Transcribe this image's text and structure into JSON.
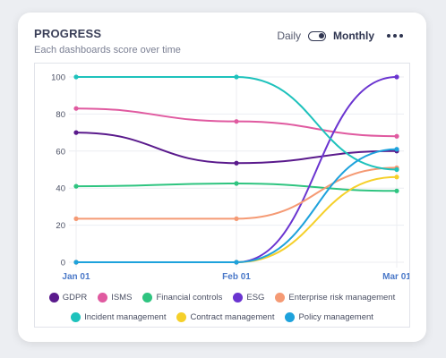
{
  "header": {
    "title": "PROGRESS",
    "subtitle": "Each dashboards score over time"
  },
  "toolbar": {
    "daily_label": "Daily",
    "monthly_label": "Monthly",
    "toggle_state": "monthly",
    "more_icon": "more-horizontal-icon"
  },
  "chart_data": {
    "type": "line",
    "categories": [
      "Jan 01",
      "Feb 01",
      "Mar 01"
    ],
    "ylim": [
      0,
      100
    ],
    "yticks": [
      0,
      20,
      40,
      60,
      80,
      100
    ],
    "grid": true,
    "legend_position": "bottom",
    "series": [
      {
        "name": "GDPR",
        "color": "#5a1a8c",
        "values": [
          70,
          53.5,
          60
        ]
      },
      {
        "name": "ISMS",
        "color": "#e05aa0",
        "values": [
          83,
          76,
          68
        ]
      },
      {
        "name": "Financial controls",
        "color": "#2fc480",
        "values": [
          41,
          42.5,
          38.5
        ]
      },
      {
        "name": "ESG",
        "color": "#6a34d0",
        "values": [
          0,
          0,
          100
        ]
      },
      {
        "name": "Enterprise risk management",
        "color": "#f59a74",
        "values": [
          23.5,
          23.5,
          51
        ]
      },
      {
        "name": "Incident management",
        "color": "#1ec2bc",
        "values": [
          100,
          100,
          50
        ]
      },
      {
        "name": "Contract management",
        "color": "#f5d02a",
        "values": [
          0,
          0,
          46
        ]
      },
      {
        "name": "Policy management",
        "color": "#1ea2dc",
        "values": [
          0,
          0,
          61
        ]
      }
    ]
  }
}
